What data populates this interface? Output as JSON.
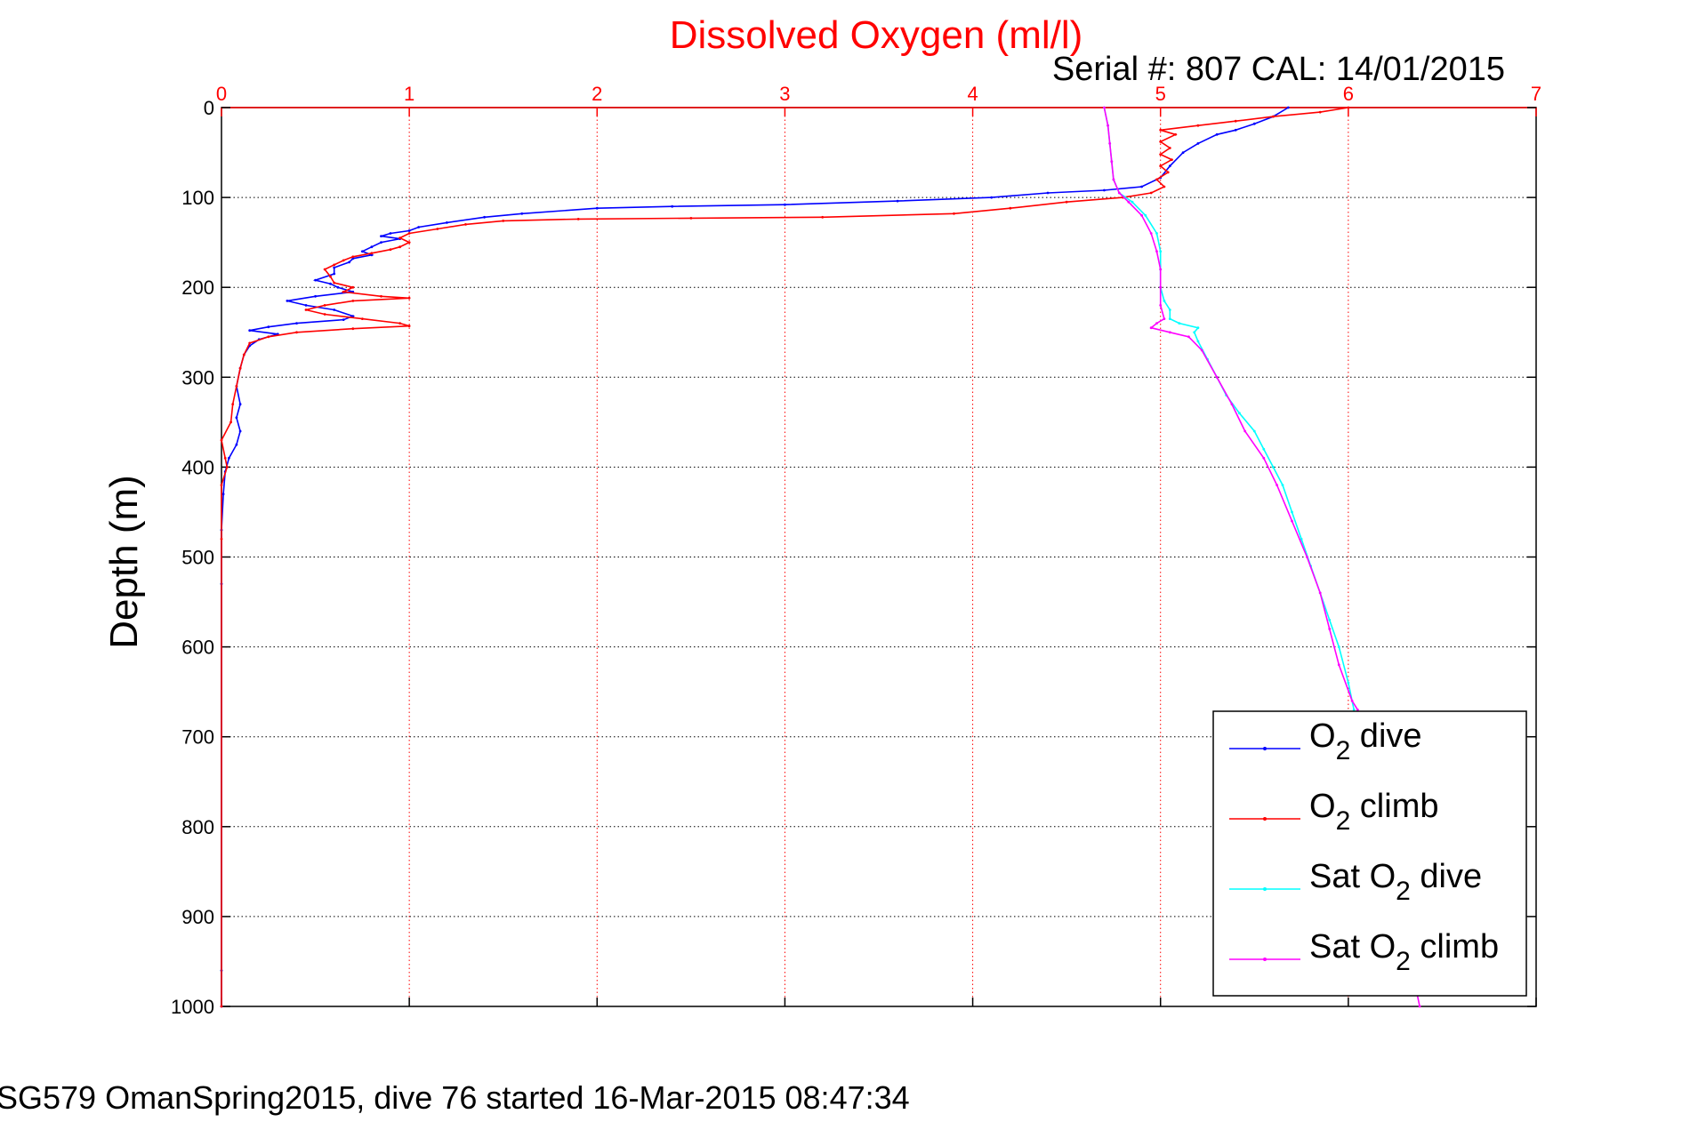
{
  "figure": {
    "title": "Dissolved Oxygen (ml/l)",
    "serial_cal": "Serial #: 807  CAL: 14/01/2015",
    "footer": "SG579 OmanSpring2015, dive 76 started 16-Mar-2015 08:47:34",
    "title_color": "#ff0000"
  },
  "chart_data": {
    "type": "line",
    "title": "Dissolved Oxygen (ml/l)",
    "xlabel": "",
    "ylabel": "Depth (m)",
    "x_axis_position": "top",
    "y_axis_reversed": true,
    "xlim": [
      0,
      7
    ],
    "ylim": [
      0,
      1000
    ],
    "xticks": [
      "0",
      "1",
      "2",
      "3",
      "4",
      "5",
      "6",
      "7"
    ],
    "yticks": [
      "0",
      "100",
      "200",
      "300",
      "400",
      "500",
      "600",
      "700",
      "800",
      "900",
      "1000"
    ],
    "grid": true,
    "legend_position": "bottom-right",
    "series": [
      {
        "name": "O2 dive",
        "legend_main": "O",
        "legend_sub": "2",
        "legend_rest": " dive",
        "color": "#0000ff",
        "points": [
          [
            5.68,
            0
          ],
          [
            5.6,
            10
          ],
          [
            5.5,
            18
          ],
          [
            5.4,
            25
          ],
          [
            5.3,
            30
          ],
          [
            5.2,
            40
          ],
          [
            5.12,
            50
          ],
          [
            5.05,
            65
          ],
          [
            5.0,
            78
          ],
          [
            4.9,
            88
          ],
          [
            4.7,
            92
          ],
          [
            4.4,
            95
          ],
          [
            4.1,
            100
          ],
          [
            3.6,
            104
          ],
          [
            3.0,
            108
          ],
          [
            2.4,
            110
          ],
          [
            2.0,
            112
          ],
          [
            1.6,
            118
          ],
          [
            1.4,
            122
          ],
          [
            1.2,
            128
          ],
          [
            1.05,
            133
          ],
          [
            1.0,
            137
          ],
          [
            0.9,
            140
          ],
          [
            0.85,
            143
          ],
          [
            0.95,
            146
          ],
          [
            0.85,
            150
          ],
          [
            0.8,
            155
          ],
          [
            0.75,
            160
          ],
          [
            0.8,
            164
          ],
          [
            0.7,
            168
          ],
          [
            0.68,
            172
          ],
          [
            0.6,
            178
          ],
          [
            0.6,
            185
          ],
          [
            0.5,
            192
          ],
          [
            0.58,
            196
          ],
          [
            0.62,
            200
          ],
          [
            0.7,
            205
          ],
          [
            0.5,
            210
          ],
          [
            0.35,
            215
          ],
          [
            0.45,
            220
          ],
          [
            0.6,
            225
          ],
          [
            0.7,
            232
          ],
          [
            0.65,
            236
          ],
          [
            0.4,
            240
          ],
          [
            0.25,
            244
          ],
          [
            0.15,
            248
          ],
          [
            0.3,
            252
          ],
          [
            0.2,
            258
          ],
          [
            0.15,
            265
          ],
          [
            0.12,
            275
          ],
          [
            0.1,
            290
          ],
          [
            0.08,
            310
          ],
          [
            0.1,
            330
          ],
          [
            0.08,
            345
          ],
          [
            0.1,
            360
          ],
          [
            0.08,
            375
          ],
          [
            0.04,
            390
          ],
          [
            0.02,
            405
          ],
          [
            0.01,
            430
          ],
          [
            0.0,
            470
          ],
          [
            0.0,
            530
          ],
          [
            0.0,
            960
          ],
          [
            0.0,
            1000
          ]
        ]
      },
      {
        "name": "O2 climb",
        "legend_main": "O",
        "legend_sub": "2",
        "legend_rest": " climb",
        "color": "#ff0000",
        "points": [
          [
            6.0,
            0
          ],
          [
            5.85,
            5
          ],
          [
            5.6,
            10
          ],
          [
            5.4,
            15
          ],
          [
            5.2,
            20
          ],
          [
            5.0,
            25
          ],
          [
            5.08,
            30
          ],
          [
            5.0,
            38
          ],
          [
            5.05,
            45
          ],
          [
            5.0,
            52
          ],
          [
            5.06,
            58
          ],
          [
            5.0,
            65
          ],
          [
            5.04,
            72
          ],
          [
            4.98,
            80
          ],
          [
            5.02,
            88
          ],
          [
            4.95,
            95
          ],
          [
            4.8,
            100
          ],
          [
            4.5,
            105
          ],
          [
            4.2,
            112
          ],
          [
            3.9,
            118
          ],
          [
            3.2,
            122
          ],
          [
            2.5,
            123
          ],
          [
            1.9,
            124
          ],
          [
            1.5,
            126
          ],
          [
            1.3,
            130
          ],
          [
            1.15,
            135
          ],
          [
            1.0,
            140
          ],
          [
            0.95,
            145
          ],
          [
            1.0,
            150
          ],
          [
            0.95,
            155
          ],
          [
            0.9,
            158
          ],
          [
            0.8,
            162
          ],
          [
            0.7,
            166
          ],
          [
            0.65,
            170
          ],
          [
            0.6,
            175
          ],
          [
            0.55,
            180
          ],
          [
            0.58,
            188
          ],
          [
            0.6,
            195
          ],
          [
            0.7,
            200
          ],
          [
            0.65,
            205
          ],
          [
            0.85,
            210
          ],
          [
            1.0,
            212
          ],
          [
            0.7,
            215
          ],
          [
            0.55,
            220
          ],
          [
            0.45,
            225
          ],
          [
            0.55,
            230
          ],
          [
            0.75,
            235
          ],
          [
            0.95,
            240
          ],
          [
            1.0,
            243
          ],
          [
            0.7,
            246
          ],
          [
            0.4,
            250
          ],
          [
            0.25,
            255
          ],
          [
            0.15,
            262
          ],
          [
            0.12,
            275
          ],
          [
            0.1,
            290
          ],
          [
            0.08,
            310
          ],
          [
            0.06,
            330
          ],
          [
            0.05,
            350
          ],
          [
            0.0,
            370
          ],
          [
            0.02,
            390
          ],
          [
            0.03,
            400
          ],
          [
            0.0,
            420
          ],
          [
            0.0,
            480
          ],
          [
            0.0,
            1000
          ]
        ]
      },
      {
        "name": "Sat O2 dive",
        "legend_main": "Sat O",
        "legend_sub": "2",
        "legend_rest": " dive",
        "color": "#00ffff",
        "points": [
          [
            4.7,
            0
          ],
          [
            4.72,
            20
          ],
          [
            4.73,
            40
          ],
          [
            4.74,
            60
          ],
          [
            4.75,
            80
          ],
          [
            4.78,
            95
          ],
          [
            4.85,
            105
          ],
          [
            4.92,
            120
          ],
          [
            4.98,
            140
          ],
          [
            5.0,
            160
          ],
          [
            5.0,
            180
          ],
          [
            5.0,
            200
          ],
          [
            5.02,
            215
          ],
          [
            5.05,
            225
          ],
          [
            5.05,
            235
          ],
          [
            5.1,
            240
          ],
          [
            5.2,
            245
          ],
          [
            5.18,
            250
          ],
          [
            5.2,
            260
          ],
          [
            5.25,
            280
          ],
          [
            5.3,
            300
          ],
          [
            5.35,
            320
          ],
          [
            5.42,
            340
          ],
          [
            5.5,
            360
          ],
          [
            5.55,
            380
          ],
          [
            5.6,
            400
          ],
          [
            5.65,
            420
          ],
          [
            5.7,
            450
          ],
          [
            5.75,
            480
          ],
          [
            5.8,
            510
          ],
          [
            5.85,
            540
          ],
          [
            5.9,
            570
          ],
          [
            5.95,
            600
          ],
          [
            6.0,
            640
          ],
          [
            6.03,
            670
          ]
        ]
      },
      {
        "name": "Sat O2 climb",
        "legend_main": "Sat O",
        "legend_sub": "2",
        "legend_rest": " climb",
        "color": "#ff00ff",
        "points": [
          [
            4.7,
            0
          ],
          [
            4.72,
            20
          ],
          [
            4.73,
            40
          ],
          [
            4.74,
            60
          ],
          [
            4.75,
            80
          ],
          [
            4.78,
            95
          ],
          [
            4.83,
            105
          ],
          [
            4.9,
            120
          ],
          [
            4.95,
            140
          ],
          [
            4.98,
            160
          ],
          [
            5.0,
            180
          ],
          [
            5.0,
            200
          ],
          [
            5.0,
            220
          ],
          [
            5.02,
            235
          ],
          [
            4.98,
            240
          ],
          [
            4.95,
            245
          ],
          [
            5.05,
            250
          ],
          [
            5.15,
            255
          ],
          [
            5.22,
            270
          ],
          [
            5.3,
            300
          ],
          [
            5.38,
            330
          ],
          [
            5.45,
            360
          ],
          [
            5.55,
            390
          ],
          [
            5.62,
            420
          ],
          [
            5.7,
            460
          ],
          [
            5.78,
            500
          ],
          [
            5.85,
            540
          ],
          [
            5.9,
            580
          ],
          [
            5.95,
            620
          ],
          [
            6.02,
            660
          ],
          [
            6.05,
            670
          ],
          [
            6.38,
            1000
          ]
        ]
      }
    ]
  }
}
